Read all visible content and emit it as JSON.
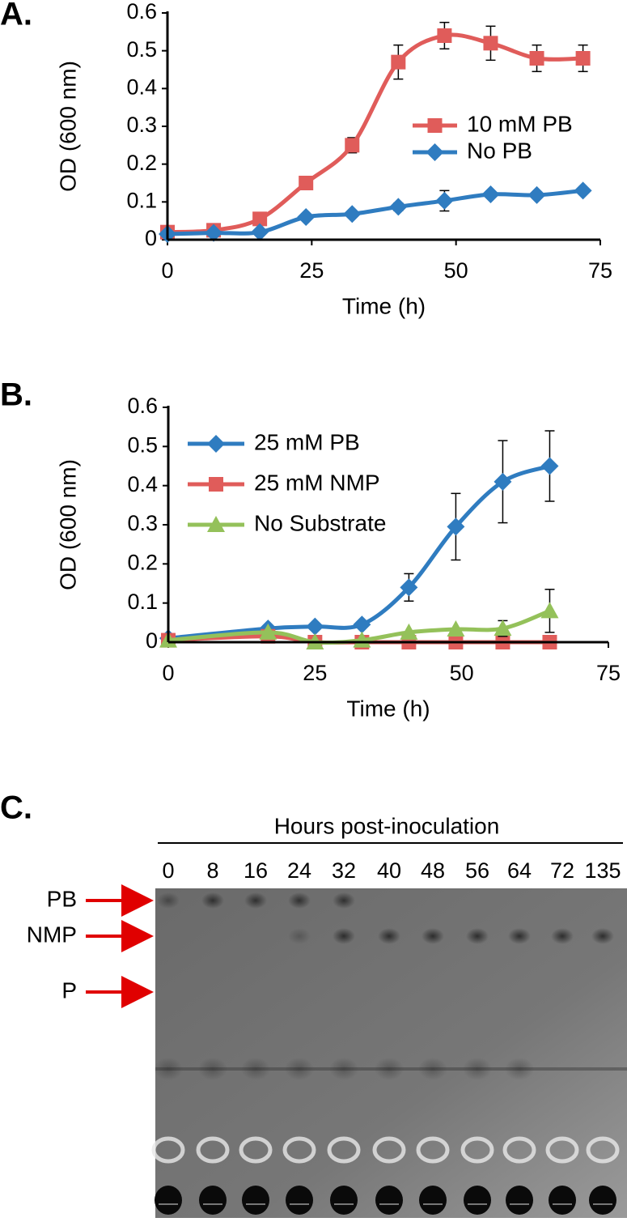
{
  "chart_data": [
    {
      "type": "line",
      "label": "A.",
      "x_label": "Time (h)",
      "y_label": "OD (600 nm)",
      "xlim": [
        0,
        75
      ],
      "xticks": [
        0,
        25,
        50,
        75
      ],
      "ylim": [
        0,
        0.6
      ],
      "yticks": [
        0,
        0.1,
        0.2,
        0.3,
        0.4,
        0.5,
        0.6
      ],
      "legend": "right",
      "series": [
        {
          "name": "10 mM PB",
          "color": "#e05c5a",
          "marker": "square",
          "x": [
            0,
            8,
            16,
            24,
            32,
            40,
            48,
            56,
            64,
            72
          ],
          "values": [
            0.02,
            0.025,
            0.055,
            0.15,
            0.25,
            0.47,
            0.54,
            0.52,
            0.48,
            0.48
          ],
          "errors": [
            null,
            null,
            null,
            null,
            0.02,
            0.045,
            0.035,
            0.045,
            0.035,
            0.035
          ]
        },
        {
          "name": "No PB",
          "color": "#2f7cc0",
          "marker": "diamond",
          "x": [
            0,
            8,
            16,
            24,
            32,
            40,
            48,
            56,
            64,
            72
          ],
          "values": [
            0.015,
            0.018,
            0.02,
            0.06,
            0.068,
            0.087,
            0.103,
            0.12,
            0.118,
            0.13
          ],
          "errors": [
            null,
            null,
            null,
            null,
            null,
            0.01,
            0.027,
            null,
            null,
            null
          ]
        }
      ]
    },
    {
      "type": "line",
      "label": "B.",
      "x_label": "Time (h)",
      "y_label": "OD (600 nm)",
      "xlim": [
        0,
        75
      ],
      "xticks": [
        0,
        25,
        50,
        75
      ],
      "ylim": [
        0,
        0.6
      ],
      "yticks": [
        0,
        0.1,
        0.2,
        0.3,
        0.4,
        0.5,
        0.6
      ],
      "legend": "left",
      "series": [
        {
          "name": "25 mM PB",
          "color": "#2f7cc0",
          "marker": "diamond",
          "x": [
            0,
            17,
            25,
            33,
            41,
            49,
            57,
            65
          ],
          "values": [
            0.01,
            0.035,
            0.04,
            0.045,
            0.14,
            0.295,
            0.41,
            0.45
          ],
          "errors": [
            null,
            null,
            null,
            null,
            0.035,
            0.085,
            0.105,
            0.09
          ]
        },
        {
          "name": "25 mM NMP",
          "color": "#e05c5a",
          "marker": "square",
          "x": [
            0,
            17,
            25,
            33,
            41,
            49,
            57,
            65
          ],
          "values": [
            0.005,
            0.015,
            0.0,
            0.0,
            0.0,
            0.0,
            0.0,
            0.0
          ],
          "errors": [
            null,
            null,
            null,
            null,
            null,
            null,
            null,
            null
          ]
        },
        {
          "name": "No Substrate",
          "color": "#94c15a",
          "marker": "triangle",
          "x": [
            0,
            17,
            25,
            33,
            41,
            49,
            57,
            65
          ],
          "values": [
            0.005,
            0.025,
            0.0,
            0.005,
            0.025,
            0.033,
            0.035,
            0.08
          ],
          "errors": [
            null,
            null,
            null,
            null,
            null,
            null,
            0.02,
            0.055
          ]
        }
      ]
    }
  ],
  "panel_c": {
    "label": "C.",
    "title": "Hours post-inoculation",
    "lanes": [
      "0",
      "8",
      "16",
      "24",
      "32",
      "40",
      "48",
      "56",
      "64",
      "72",
      "135"
    ],
    "bands": [
      "PB",
      "NMP",
      "P"
    ]
  }
}
